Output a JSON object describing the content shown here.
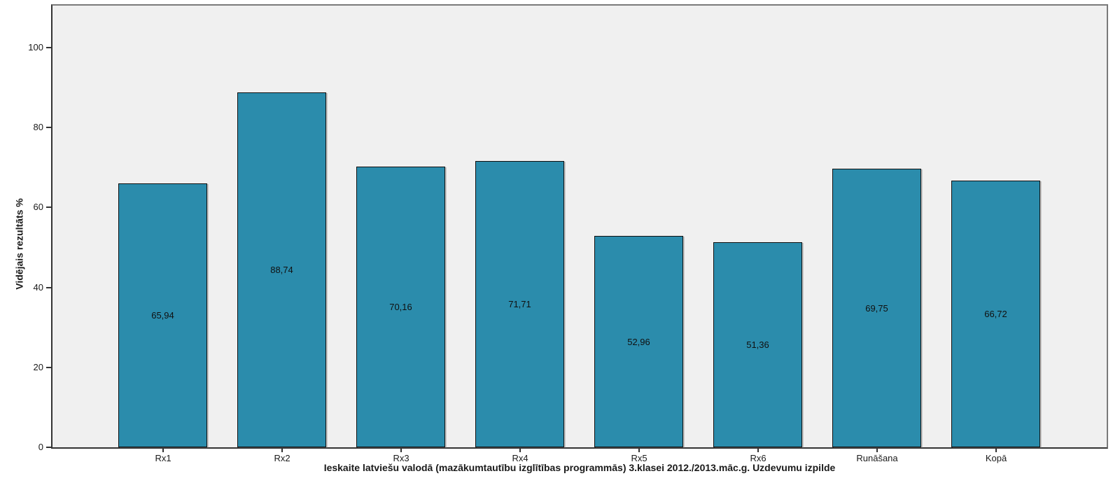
{
  "chart_data": {
    "type": "bar",
    "title": "",
    "categories": [
      "Rx1",
      "Rx2",
      "Rx3",
      "Rx4",
      "Rx5",
      "Rx6",
      "Runāšana",
      "Kopā"
    ],
    "values": [
      65.94,
      88.74,
      70.16,
      71.71,
      52.96,
      51.36,
      69.75,
      66.72
    ],
    "value_labels": [
      "65,94",
      "88,74",
      "70,16",
      "71,71",
      "52,96",
      "51,36",
      "69,75",
      "66,72"
    ],
    "xlabel": "Ieskaite latviešu valodā (mazākumtautību izglītības programmās) 3.klasei 2012./2013.māc.g. Uzdevumu izpilde",
    "ylabel": "Vidējais rezultāts %",
    "ylim": [
      0,
      111
    ],
    "yticks": [
      0,
      20,
      40,
      60,
      80,
      100
    ],
    "grid": false,
    "legend": "none",
    "colors": {
      "bar_fill": "#2b8cac",
      "bar_border": "#101010",
      "plot_background": "#f0f0f0",
      "outer_background": "#ffffff",
      "frame_border": "#7a7a7a",
      "axis_line": "#333333",
      "text": "#1a1a1a"
    }
  }
}
